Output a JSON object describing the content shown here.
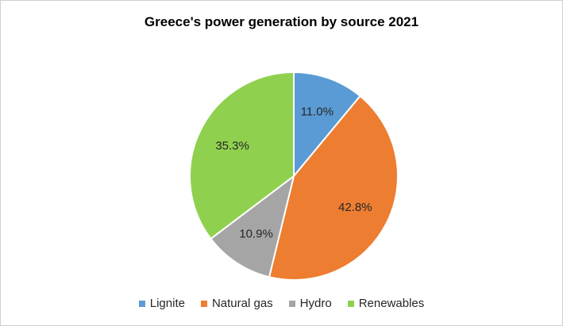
{
  "chart_data": {
    "type": "pie",
    "title": "Greece's power generation by source 2021",
    "categories": [
      "Lignite",
      "Natural gas",
      "Hydro",
      "Renewables"
    ],
    "values": [
      11.0,
      42.8,
      10.9,
      35.3
    ],
    "data_labels": [
      "11.0%",
      "42.8%",
      "10.9%",
      "35.3%"
    ],
    "colors": [
      "#5b9bd5",
      "#ed7d31",
      "#a5a5a5",
      "#8fd14f"
    ],
    "legend_position": "bottom",
    "start_angle": "12 o'clock, clockwise"
  }
}
